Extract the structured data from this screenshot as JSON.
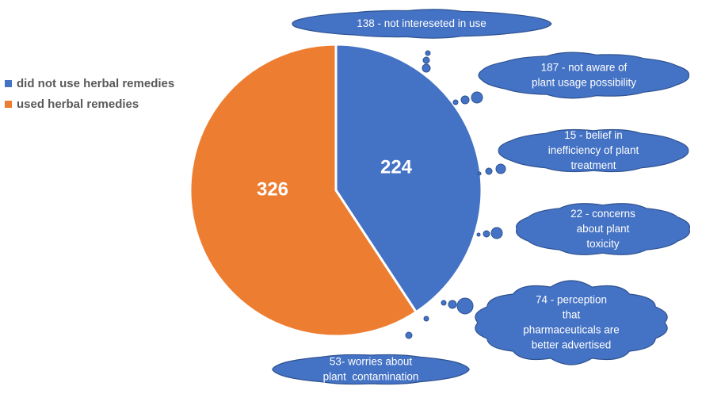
{
  "chart_data": {
    "type": "pie",
    "categories": [
      "did not use herbal remedies",
      "used herbal remedies"
    ],
    "values": [
      224,
      326
    ],
    "data_labels": [
      "224",
      "326"
    ],
    "colors": [
      "#4472C4",
      "#ED7D31"
    ],
    "legend_position": "left",
    "annotations": [
      {
        "lines": [
          "138 - not intereseted in use"
        ]
      },
      {
        "lines": [
          "187 - not aware of",
          "plant usage possibility"
        ]
      },
      {
        "lines": [
          "15 - belief in",
          "inefficiency of plant",
          "treatment"
        ]
      },
      {
        "lines": [
          "22 - concerns",
          "about plant",
          "toxicity"
        ]
      },
      {
        "lines": [
          "74 - perception",
          "that",
          "pharmaceuticals are",
          "better advertised"
        ]
      },
      {
        "lines": [
          "53- worries about",
          "plant  contamination"
        ]
      }
    ]
  },
  "legend": {
    "items": [
      {
        "label": "did not use herbal remedies",
        "color": "#4472C4"
      },
      {
        "label": "used herbal remedies",
        "color": "#ED7D31"
      }
    ]
  },
  "style": {
    "cloud_fill": "#4472C4",
    "cloud_stroke": "#2F528F",
    "cloud_text": "#ffffff",
    "slice_border": "#ffffff"
  }
}
